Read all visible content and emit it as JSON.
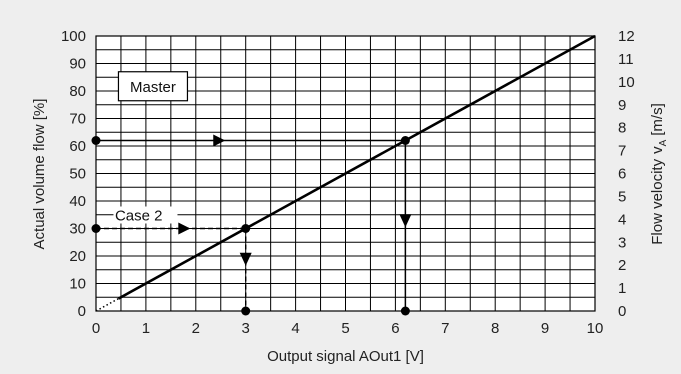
{
  "chart_data": {
    "type": "line",
    "xlabel": "Output signal AOut1 [V]",
    "ylabel_left": "Actual volume flow [%]",
    "ylabel_right": "Flow velocity",
    "ylabel_right_sub": "A",
    "ylabel_right_unit": "[m/s]",
    "xlim": [
      0,
      10
    ],
    "ylim_left": [
      0,
      100
    ],
    "ylim_right": [
      0,
      12
    ],
    "x_ticks": [
      0,
      1,
      2,
      3,
      4,
      5,
      6,
      7,
      8,
      9,
      10
    ],
    "y_left_ticks": [
      0,
      10,
      20,
      30,
      40,
      50,
      60,
      70,
      80,
      90,
      100
    ],
    "y_right_ticks": [
      0,
      1,
      2,
      3,
      4,
      5,
      6,
      7,
      8,
      9,
      10,
      11,
      12
    ],
    "grid": true,
    "series": [
      {
        "values": [
          [
            0,
            0
          ],
          [
            10,
            100
          ]
        ],
        "style": "solid, dotted near origin",
        "color": "#000000"
      }
    ],
    "annotations": {
      "master_label": "Master",
      "case2_label": "Case 2",
      "master_path": {
        "flow": 62,
        "signal": 6.2
      },
      "case2_path": {
        "flow": 30,
        "signal": 3
      }
    }
  }
}
